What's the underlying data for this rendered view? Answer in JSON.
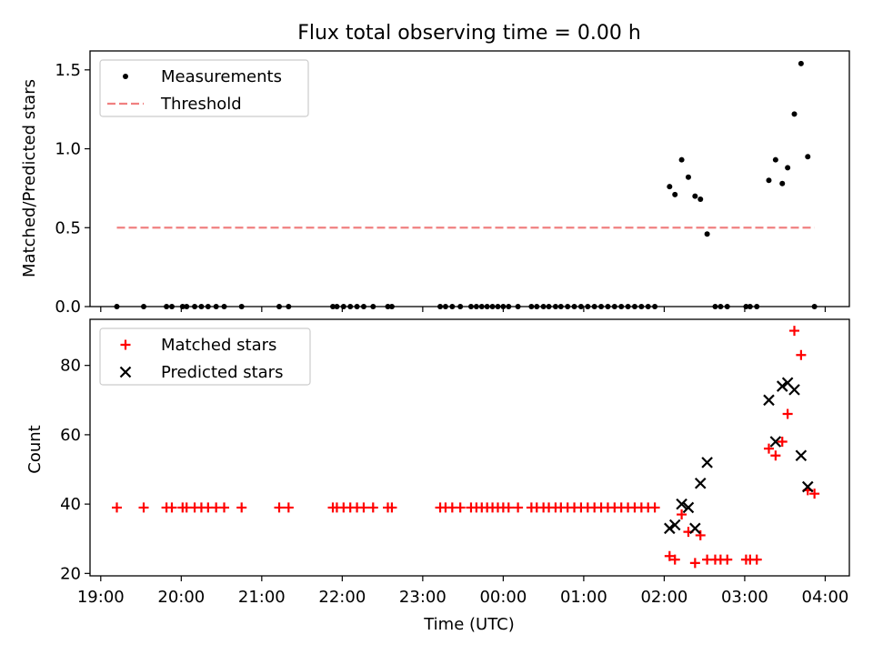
{
  "chart_data": [
    {
      "type": "scatter",
      "title": "Flux total observing time = 0.00 h",
      "ylabel": "Matched/Predicted stars",
      "xlabel": "",
      "xlim": [
        "18:52",
        "04:18"
      ],
      "ylim": [
        0,
        1.62
      ],
      "yticks": [
        0.0,
        0.5,
        1.0,
        1.5
      ],
      "ytick_labels": [
        "0.0",
        "0.5",
        "1.0",
        "1.5"
      ],
      "xticks": [
        "19:00",
        "20:00",
        "21:00",
        "22:00",
        "23:00",
        "00:00",
        "01:00",
        "02:00",
        "03:00",
        "04:00"
      ],
      "legend_position": "top-left",
      "legend": [
        {
          "label": "Measurements",
          "marker": "dot",
          "color": "#000000"
        },
        {
          "label": "Threshold",
          "marker": "dashed-line",
          "color": "#f08080"
        }
      ],
      "threshold": {
        "name": "Threshold",
        "value": 0.5,
        "x_range": [
          "19:12",
          "03:52"
        ],
        "color": "#f08080"
      },
      "series": [
        {
          "name": "Measurements",
          "color": "#000000",
          "points": [
            [
              "19:12",
              0
            ],
            [
              "19:32",
              0
            ],
            [
              "19:49",
              0
            ],
            [
              "19:53",
              0
            ],
            [
              "20:01",
              0
            ],
            [
              "20:04",
              0
            ],
            [
              "20:10",
              0
            ],
            [
              "20:15",
              0
            ],
            [
              "20:20",
              0
            ],
            [
              "20:26",
              0
            ],
            [
              "20:32",
              0
            ],
            [
              "20:45",
              0
            ],
            [
              "21:13",
              0
            ],
            [
              "21:20",
              0
            ],
            [
              "21:53",
              0
            ],
            [
              "21:56",
              0
            ],
            [
              "22:01",
              0
            ],
            [
              "22:06",
              0
            ],
            [
              "22:11",
              0
            ],
            [
              "22:16",
              0
            ],
            [
              "22:23",
              0
            ],
            [
              "22:34",
              0
            ],
            [
              "22:37",
              0
            ],
            [
              "23:13",
              0
            ],
            [
              "23:17",
              0
            ],
            [
              "23:22",
              0
            ],
            [
              "23:28",
              0
            ],
            [
              "23:36",
              0
            ],
            [
              "23:40",
              0
            ],
            [
              "23:44",
              0
            ],
            [
              "23:48",
              0
            ],
            [
              "23:52",
              0
            ],
            [
              "23:56",
              0
            ],
            [
              "00:00",
              0
            ],
            [
              "00:04",
              0
            ],
            [
              "00:11",
              0
            ],
            [
              "00:21",
              0
            ],
            [
              "00:25",
              0
            ],
            [
              "00:30",
              0
            ],
            [
              "00:34",
              0
            ],
            [
              "00:39",
              0
            ],
            [
              "00:43",
              0
            ],
            [
              "00:48",
              0
            ],
            [
              "00:53",
              0
            ],
            [
              "00:58",
              0
            ],
            [
              "01:03",
              0
            ],
            [
              "01:08",
              0
            ],
            [
              "01:13",
              0
            ],
            [
              "01:18",
              0
            ],
            [
              "01:23",
              0
            ],
            [
              "01:28",
              0
            ],
            [
              "01:33",
              0
            ],
            [
              "01:38",
              0
            ],
            [
              "01:43",
              0
            ],
            [
              "01:48",
              0
            ],
            [
              "01:53",
              0
            ],
            [
              "02:04",
              0.76
            ],
            [
              "02:08",
              0.71
            ],
            [
              "02:13",
              0.93
            ],
            [
              "02:18",
              0.82
            ],
            [
              "02:23",
              0.7
            ],
            [
              "02:27",
              0.68
            ],
            [
              "02:32",
              0.46
            ],
            [
              "02:38",
              0
            ],
            [
              "02:42",
              0
            ],
            [
              "02:47",
              0
            ],
            [
              "03:01",
              0
            ],
            [
              "03:04",
              0
            ],
            [
              "03:09",
              0
            ],
            [
              "03:18",
              0.8
            ],
            [
              "03:23",
              0.93
            ],
            [
              "03:28",
              0.78
            ],
            [
              "03:32",
              0.88
            ],
            [
              "03:37",
              1.22
            ],
            [
              "03:42",
              1.54
            ],
            [
              "03:47",
              0.95
            ],
            [
              "03:52",
              0
            ]
          ]
        }
      ]
    },
    {
      "type": "scatter",
      "title": "",
      "ylabel": "Count",
      "xlabel": "Time (UTC)",
      "xlim": [
        "18:52",
        "04:18"
      ],
      "ylim": [
        19.3,
        93.3
      ],
      "yticks": [
        20,
        40,
        60,
        80
      ],
      "ytick_labels": [
        "20",
        "40",
        "60",
        "80"
      ],
      "xticks": [
        "19:00",
        "20:00",
        "21:00",
        "22:00",
        "23:00",
        "00:00",
        "01:00",
        "02:00",
        "03:00",
        "04:00"
      ],
      "legend_position": "top-left",
      "legend": [
        {
          "label": "Matched stars",
          "marker": "plus",
          "color": "#ff0000"
        },
        {
          "label": "Predicted stars",
          "marker": "x",
          "color": "#000000"
        }
      ],
      "series": [
        {
          "name": "Matched stars",
          "marker": "plus",
          "color": "#ff0000",
          "points": [
            [
              "19:12",
              39
            ],
            [
              "19:32",
              39
            ],
            [
              "19:49",
              39
            ],
            [
              "19:53",
              39
            ],
            [
              "20:01",
              39
            ],
            [
              "20:04",
              39
            ],
            [
              "20:10",
              39
            ],
            [
              "20:15",
              39
            ],
            [
              "20:20",
              39
            ],
            [
              "20:26",
              39
            ],
            [
              "20:32",
              39
            ],
            [
              "20:45",
              39
            ],
            [
              "21:13",
              39
            ],
            [
              "21:20",
              39
            ],
            [
              "21:53",
              39
            ],
            [
              "21:56",
              39
            ],
            [
              "22:01",
              39
            ],
            [
              "22:06",
              39
            ],
            [
              "22:11",
              39
            ],
            [
              "22:16",
              39
            ],
            [
              "22:23",
              39
            ],
            [
              "22:34",
              39
            ],
            [
              "22:37",
              39
            ],
            [
              "23:13",
              39
            ],
            [
              "23:17",
              39
            ],
            [
              "23:22",
              39
            ],
            [
              "23:28",
              39
            ],
            [
              "23:36",
              39
            ],
            [
              "23:40",
              39
            ],
            [
              "23:44",
              39
            ],
            [
              "23:48",
              39
            ],
            [
              "23:52",
              39
            ],
            [
              "23:56",
              39
            ],
            [
              "00:00",
              39
            ],
            [
              "00:04",
              39
            ],
            [
              "00:11",
              39
            ],
            [
              "00:21",
              39
            ],
            [
              "00:25",
              39
            ],
            [
              "00:30",
              39
            ],
            [
              "00:34",
              39
            ],
            [
              "00:39",
              39
            ],
            [
              "00:43",
              39
            ],
            [
              "00:48",
              39
            ],
            [
              "00:53",
              39
            ],
            [
              "00:58",
              39
            ],
            [
              "01:03",
              39
            ],
            [
              "01:08",
              39
            ],
            [
              "01:13",
              39
            ],
            [
              "01:18",
              39
            ],
            [
              "01:23",
              39
            ],
            [
              "01:28",
              39
            ],
            [
              "01:33",
              39
            ],
            [
              "01:38",
              39
            ],
            [
              "01:43",
              39
            ],
            [
              "01:48",
              39
            ],
            [
              "01:53",
              39
            ],
            [
              "02:04",
              25
            ],
            [
              "02:08",
              24
            ],
            [
              "02:13",
              37
            ],
            [
              "02:18",
              32
            ],
            [
              "02:23",
              23
            ],
            [
              "02:27",
              31
            ],
            [
              "02:32",
              24
            ],
            [
              "02:38",
              24
            ],
            [
              "02:42",
              24
            ],
            [
              "02:47",
              24
            ],
            [
              "03:01",
              24
            ],
            [
              "03:04",
              24
            ],
            [
              "03:09",
              24
            ],
            [
              "03:18",
              56
            ],
            [
              "03:23",
              54
            ],
            [
              "03:28",
              58
            ],
            [
              "03:32",
              66
            ],
            [
              "03:37",
              90
            ],
            [
              "03:42",
              83
            ],
            [
              "03:47",
              44
            ],
            [
              "03:52",
              43
            ]
          ]
        },
        {
          "name": "Predicted stars",
          "marker": "x",
          "color": "#000000",
          "points": [
            [
              "02:04",
              33
            ],
            [
              "02:08",
              34
            ],
            [
              "02:13",
              40
            ],
            [
              "02:18",
              39
            ],
            [
              "02:23",
              33
            ],
            [
              "02:27",
              46
            ],
            [
              "02:32",
              52
            ],
            [
              "03:18",
              70
            ],
            [
              "03:23",
              58
            ],
            [
              "03:28",
              74
            ],
            [
              "03:32",
              75
            ],
            [
              "03:37",
              73
            ],
            [
              "03:42",
              54
            ],
            [
              "03:47",
              45
            ]
          ]
        }
      ]
    }
  ]
}
